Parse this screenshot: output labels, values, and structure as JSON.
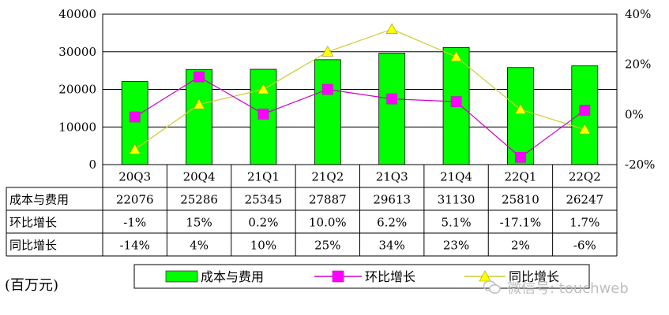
{
  "unit_label": "(百万元)",
  "watermark": {
    "text": "微信号: touchweb",
    "icon": "wechat-icon"
  },
  "colors": {
    "bar": "#00ff00",
    "bar_stroke": "#000000",
    "qoq": "#cc00cc",
    "qoq_marker": "#ff00ff",
    "yoy": "#cccc33",
    "yoy_marker": "#ffff00"
  },
  "chart_data": {
    "type": "bar",
    "categories": [
      "20Q3",
      "20Q4",
      "21Q1",
      "21Q2",
      "21Q3",
      "21Q4",
      "22Q1",
      "22Q2"
    ],
    "y_left": {
      "ylim": [
        0,
        40000
      ],
      "ticks": [
        "0",
        "10000",
        "20000",
        "30000",
        "40000"
      ],
      "tick_values": [
        0,
        10000,
        20000,
        30000,
        40000
      ]
    },
    "y_right": {
      "ylim": [
        -20,
        40
      ],
      "ticks": [
        "-20%",
        "0%",
        "20%",
        "40%"
      ],
      "tick_values": [
        -20,
        0,
        20,
        40
      ]
    },
    "grid": true,
    "legend_position": "bottom",
    "series": [
      {
        "name": "成本与费用",
        "type": "bar",
        "axis": "left",
        "values": [
          22076,
          25286,
          25345,
          27887,
          29613,
          31130,
          25810,
          26247
        ]
      },
      {
        "name": "环比增长",
        "type": "line",
        "axis": "right",
        "marker": "square",
        "values": [
          -1,
          15,
          0.2,
          10.0,
          6.2,
          5.1,
          -17.1,
          1.7
        ]
      },
      {
        "name": "同比增长",
        "type": "line",
        "axis": "right",
        "marker": "triangle",
        "values": [
          -14,
          4,
          10,
          25,
          34,
          23,
          2,
          -6
        ]
      }
    ],
    "table": {
      "rows": [
        {
          "label": "成本与费用",
          "cells": [
            "22076",
            "25286",
            "25345",
            "27887",
            "29613",
            "31130",
            "25810",
            "26247"
          ]
        },
        {
          "label": "环比增长",
          "cells": [
            "-1%",
            "15%",
            "0.2%",
            "10.0%",
            "6.2%",
            "5.1%",
            "-17.1%",
            "1.7%"
          ]
        },
        {
          "label": "同比增长",
          "cells": [
            "-14%",
            "4%",
            "10%",
            "25%",
            "34%",
            "23%",
            "2%",
            "-6%"
          ]
        }
      ]
    },
    "legend": [
      "成本与费用",
      "环比增长",
      "同比增长"
    ]
  }
}
